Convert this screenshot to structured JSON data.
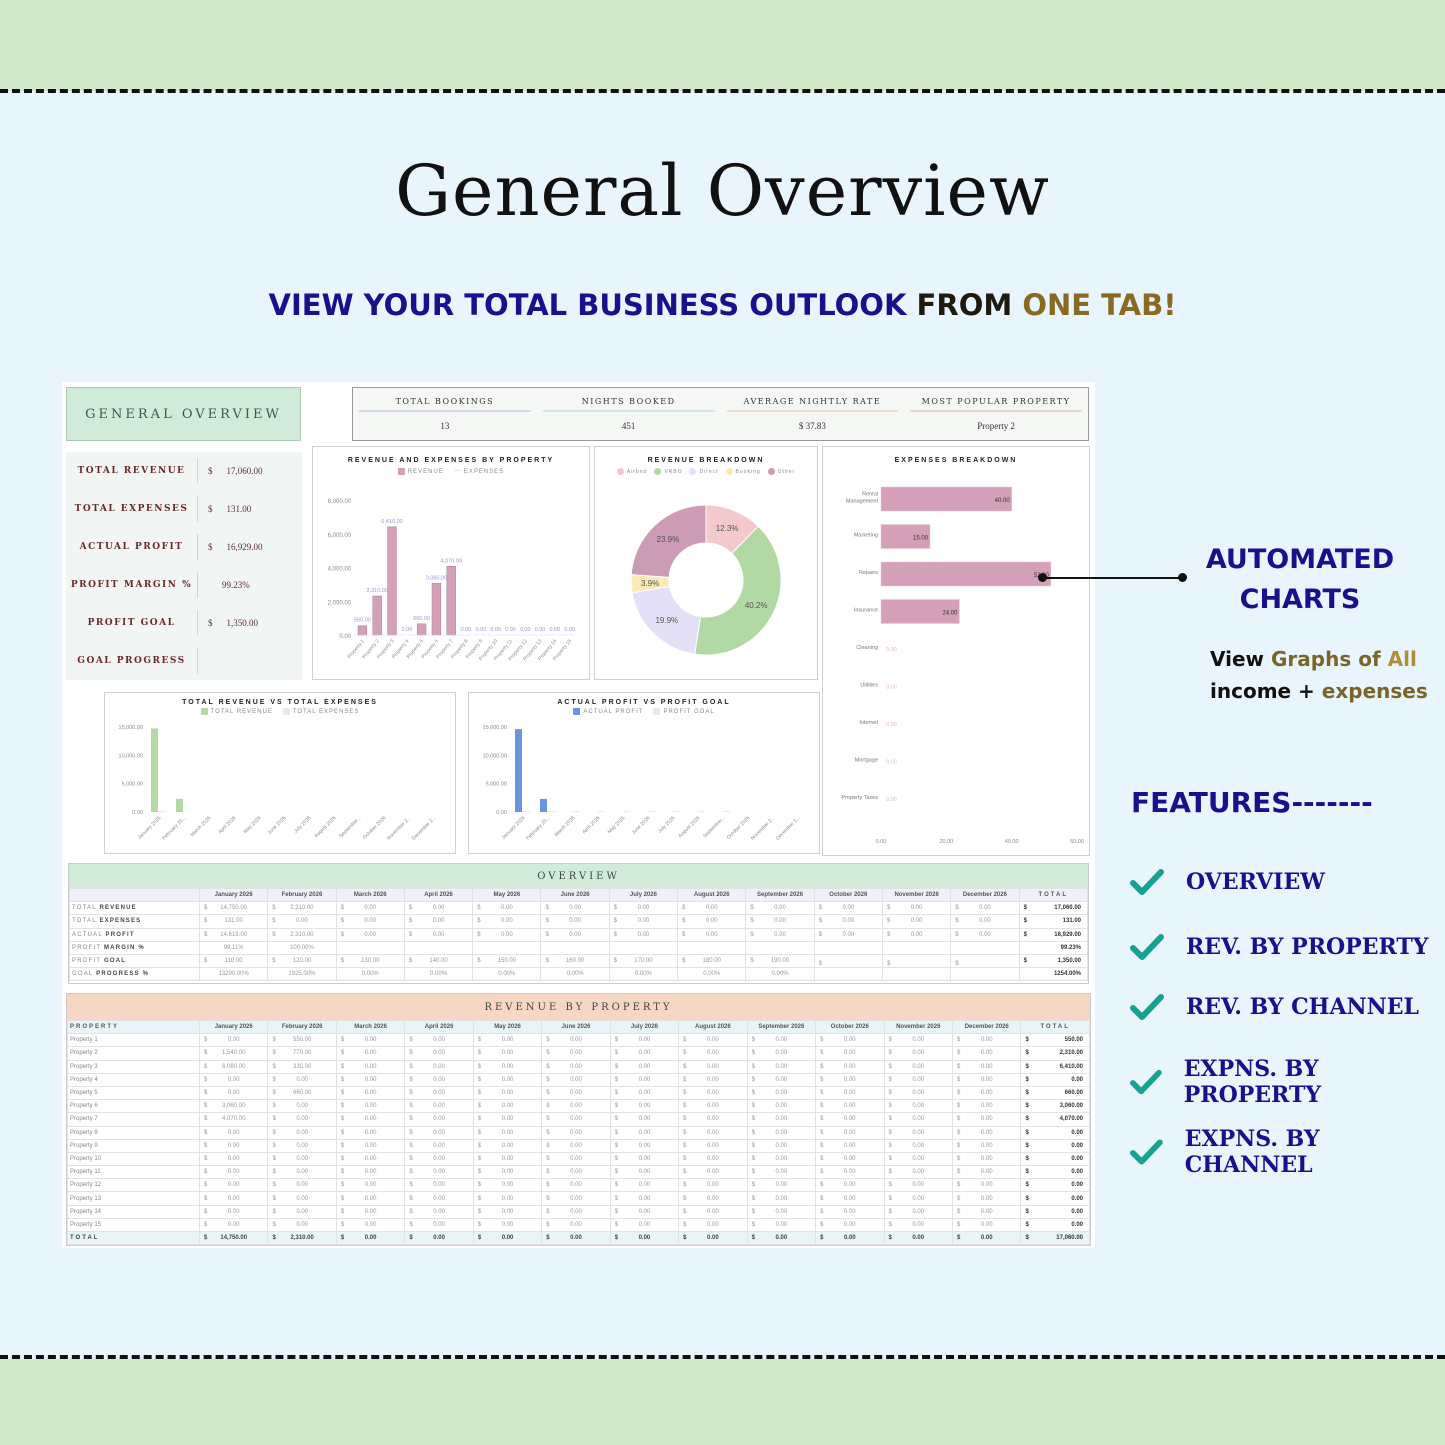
{
  "title": "General Overview",
  "subtitle": {
    "part1": "VIEW YOUR TOTAL BUSINESS OUTLOOK",
    "part2": "FR",
    "part3": "OM",
    "part4": "ONE TAB!"
  },
  "sheet": {
    "header": "GENERAL OVERVIEW",
    "kpis": [
      {
        "label": "TOTAL REVENUE",
        "currency": "$",
        "value": "17,060.00"
      },
      {
        "label": "TOTAL EXPENSES",
        "currency": "$",
        "value": "131.00"
      },
      {
        "label": "ACTUAL PROFIT",
        "currency": "$",
        "value": "16,929.00"
      },
      {
        "label": "PROFIT MARGIN  %",
        "currency": "",
        "value": "99.23%"
      },
      {
        "label": "PROFIT GOAL",
        "currency": "$",
        "value": "1,350.00"
      },
      {
        "label": "GOAL PROGRESS",
        "currency": "",
        "value": ""
      }
    ],
    "top_kpis": [
      {
        "label": "TOTAL BOOKINGS",
        "value": "13",
        "color": "#d9d6f0"
      },
      {
        "label": "NIGHTS BOOKED",
        "value": "451",
        "color": "#cfe8e8"
      },
      {
        "label": "AVERAGE NIGHTLY RATE",
        "value": "$        37.83",
        "color": "#f3d9c8"
      },
      {
        "label": "MOST POPULAR PROPERTY",
        "value": "Property 2",
        "color": "#efd3d3"
      }
    ],
    "overview_table": {
      "title": "OVERVIEW",
      "columns": [
        "",
        "January 2026",
        "February 2026",
        "March 2026",
        "April 2026",
        "May 2026",
        "June 2026",
        "July 2026",
        "August 2026",
        "September 2026",
        "October 2026",
        "November 2026",
        "December 2026",
        "TOTAL"
      ],
      "rows": [
        {
          "label_a": "TOTAL",
          "label_b": "REVENUE",
          "cur": true,
          "values": [
            "14,750.00",
            "2,310.00",
            "0.00",
            "0.00",
            "0.00",
            "0.00",
            "0.00",
            "0.00",
            "0.00",
            "0.00",
            "0.00",
            "0.00"
          ],
          "total": "17,060.00"
        },
        {
          "label_a": "TOTAL",
          "label_b": "EXPENSES",
          "cur": true,
          "values": [
            "131.00",
            "0.00",
            "0.00",
            "0.00",
            "0.00",
            "0.00",
            "0.00",
            "0.00",
            "0.00",
            "0.00",
            "0.00",
            "0.00"
          ],
          "total": "131.00"
        },
        {
          "label_a": "ACTUAL",
          "label_b": "PROFIT",
          "cur": true,
          "values": [
            "14,619.00",
            "2,310.00",
            "0.00",
            "0.00",
            "0.00",
            "0.00",
            "0.00",
            "0.00",
            "0.00",
            "0.00",
            "0.00",
            "0.00"
          ],
          "total": "16,929.00"
        },
        {
          "label_a": "PROFIT",
          "label_b": "MARGIN %",
          "cur": false,
          "values": [
            "99.11%",
            "100.00%",
            "",
            "",
            "",
            "",
            "",
            "",
            "",
            "",
            "",
            ""
          ],
          "total": "99.23%"
        },
        {
          "label_a": "PROFIT",
          "label_b": "GOAL",
          "cur": true,
          "values": [
            "110.00",
            "120.00",
            "130.00",
            "140.00",
            "150.00",
            "160.00",
            "170.00",
            "180.00",
            "190.00",
            "",
            "",
            ""
          ],
          "total": "1,350.00"
        },
        {
          "label_a": "GOAL",
          "label_b": "PROGRESS %",
          "cur": false,
          "values": [
            "13290.00%",
            "1925.00%",
            "0.00%",
            "0.00%",
            "0.00%",
            "0.00%",
            "0.00%",
            "0.00%",
            "0.00%",
            "",
            "",
            ""
          ],
          "total": "1254.00%"
        }
      ]
    },
    "revenue_table": {
      "title": "REVENUE BY PROPERTY",
      "columns": [
        "PROPERTY",
        "January 2026",
        "February 2026",
        "March 2026",
        "April 2026",
        "May 2026",
        "June 2026",
        "July 2026",
        "August 2026",
        "September 2026",
        "October 2026",
        "November 2026",
        "December 2026",
        "TOTAL"
      ],
      "rows": [
        {
          "label": "Property 1",
          "jan": "0.00",
          "feb": "550.00",
          "total": "550.00"
        },
        {
          "label": "Property 2",
          "jan": "1,540.00",
          "feb": "770.00",
          "total": "2,310.00"
        },
        {
          "label": "Property 3",
          "jan": "6,080.00",
          "feb": "330.00",
          "total": "6,410.00"
        },
        {
          "label": "Property 4",
          "jan": "0.00",
          "feb": "0.00",
          "total": "0.00"
        },
        {
          "label": "Property 5",
          "jan": "0.00",
          "feb": "660.00",
          "total": "660.00"
        },
        {
          "label": "Property 6",
          "jan": "3,060.00",
          "feb": "0.00",
          "total": "3,060.00"
        },
        {
          "label": "Property 7",
          "jan": "4,070.00",
          "feb": "0.00",
          "total": "4,070.00"
        },
        {
          "label": "Property 8",
          "jan": "0.00",
          "feb": "0.00",
          "total": "0.00"
        },
        {
          "label": "Property 9",
          "jan": "0.00",
          "feb": "0.00",
          "total": "0.00"
        },
        {
          "label": "Property 10",
          "jan": "0.00",
          "feb": "0.00",
          "total": "0.00"
        },
        {
          "label": "Property 11",
          "jan": "0.00",
          "feb": "0.00",
          "total": "0.00"
        },
        {
          "label": "Property 12",
          "jan": "0.00",
          "feb": "0.00",
          "total": "0.00"
        },
        {
          "label": "Property 13",
          "jan": "0.00",
          "feb": "0.00",
          "total": "0.00"
        },
        {
          "label": "Property 14",
          "jan": "0.00",
          "feb": "0.00",
          "total": "0.00"
        },
        {
          "label": "Property 15",
          "jan": "0.00",
          "feb": "0.00",
          "total": "0.00"
        }
      ],
      "zero": "0.00",
      "total_row": {
        "label": "TOTAL",
        "values": [
          "14,750.00",
          "2,310.00",
          "0.00",
          "0.00",
          "0.00",
          "0.00",
          "0.00",
          "0.00",
          "0.00",
          "0.00",
          "0.00",
          "0.00"
        ],
        "total": "17,060.00"
      }
    }
  },
  "chart_data": [
    {
      "type": "bar",
      "title": "REVENUE AND EXPENSES BY PROPERTY",
      "legend": [
        "REVENUE",
        "EXPENSES"
      ],
      "categories": [
        "Property 1",
        "Property 2",
        "Property 3",
        "Property 4",
        "Property 5",
        "Property 6",
        "Property 7",
        "Property 8",
        "Property 9",
        "Property 10",
        "Property 11",
        "Property 12",
        "Property 13",
        "Property 14",
        "Property 15"
      ],
      "series": [
        {
          "name": "REVENUE",
          "color": "#d4a0b8",
          "values": [
            550,
            2310,
            6410,
            0,
            660,
            3060,
            4070,
            0,
            0,
            0,
            0,
            0,
            0,
            0,
            0
          ]
        },
        {
          "name": "EXPENSES",
          "color": "#e6e6e6",
          "values": [
            0,
            0,
            0,
            0,
            0,
            0,
            0,
            0,
            0,
            0,
            0,
            0,
            0,
            0,
            0
          ]
        }
      ],
      "data_labels": [
        "550.00",
        "2,310.00",
        "6,410.00",
        "0.00",
        "660.00",
        "3,060.00",
        "4,070.00",
        "0.00",
        "0.00",
        "0.00",
        "0.00",
        "0.00",
        "0.00",
        "0.00",
        "0.00"
      ],
      "yticks": [
        "8,000.00",
        "6,000.00",
        "4,000.00",
        "2,000.00",
        "0.00"
      ],
      "ylim": [
        0,
        8000
      ]
    },
    {
      "type": "pie",
      "title": "REVENUE BREAKDOWN",
      "labels": [
        "Airbnb",
        "VRBO",
        "Direct",
        "Booking",
        "Other"
      ],
      "values": [
        12.3,
        40.2,
        19.9,
        3.9,
        23.9
      ],
      "display": [
        "12.3%",
        "40.2%",
        "19.9%",
        "3.9%",
        "23.9%"
      ],
      "colors": [
        "#f3c9cc",
        "#b2d9a4",
        "#e3e0f7",
        "#fbeab8",
        "#cc9bb5"
      ],
      "donut": true
    },
    {
      "type": "bar",
      "orientation": "horizontal",
      "title": "EXPENSES BREAKDOWN",
      "categories": [
        "Rental Management",
        "Marketing",
        "Repairs",
        "Insurance",
        "Cleaning",
        "Utilities",
        "Internet",
        "Mortgage",
        "Property Taxes"
      ],
      "values": [
        40,
        15,
        52,
        24,
        0,
        0,
        0,
        0,
        0
      ],
      "data_labels": [
        "40.00",
        "15.00",
        "52.00",
        "24.00",
        "0.00",
        "0.00",
        "0.00",
        "0.00",
        "0.00"
      ],
      "xticks": [
        "0.00",
        "20.00",
        "40.00",
        "60.00"
      ],
      "xlim": [
        0,
        60
      ],
      "color": "#d4a0b8"
    },
    {
      "type": "bar",
      "title": "TOTAL REVENUE VS TOTAL EXPENSES",
      "legend": [
        "TOTAL REVENUE",
        "TOTAL EXPENSES"
      ],
      "categories": [
        "January 2026",
        "February 20...",
        "March 2026",
        "April 2026",
        "May 2026",
        "June 2026",
        "July 2026",
        "August 2026",
        "September...",
        "October 2026",
        "November 2...",
        "December 2..."
      ],
      "series": [
        {
          "name": "TOTAL REVENUE",
          "color": "#b4d9a6",
          "values": [
            14750,
            2310,
            0,
            0,
            0,
            0,
            0,
            0,
            0,
            0,
            0,
            0
          ]
        },
        {
          "name": "TOTAL EXPENSES",
          "color": "#e2ece6",
          "values": [
            131,
            0,
            0,
            0,
            0,
            0,
            0,
            0,
            0,
            0,
            0,
            0
          ]
        }
      ],
      "yticks": [
        "15,000.00",
        "10,000.00",
        "5,000.00",
        "0.00"
      ],
      "ylim": [
        0,
        15000
      ]
    },
    {
      "type": "bar",
      "title": "ACTUAL PROFIT VS PROFIT GOAL",
      "legend": [
        "ACTUAL PROFIT",
        "PROFIT GOAL"
      ],
      "categories": [
        "January 2026",
        "February 20...",
        "March 2026",
        "April 2026",
        "May 2026",
        "June 2026",
        "July 2026",
        "August 2026",
        "September...",
        "October 2026",
        "November 2...",
        "December 2..."
      ],
      "series": [
        {
          "name": "ACTUAL PROFIT",
          "color": "#6a95de",
          "values": [
            14619,
            2310,
            0,
            0,
            0,
            0,
            0,
            0,
            0,
            0,
            0,
            0
          ]
        },
        {
          "name": "PROFIT GOAL",
          "color": "#e2ece6",
          "values": [
            110,
            120,
            130,
            140,
            150,
            160,
            170,
            180,
            190,
            0,
            0,
            0
          ]
        }
      ],
      "yticks": [
        "15,000.00",
        "10,000.00",
        "5,000.00",
        "0.00"
      ],
      "ylim": [
        0,
        15000
      ]
    }
  ],
  "callout": {
    "heading_line1": "AUTOMATED",
    "heading_line2": "CHARTS",
    "sub_view": "View",
    "sub_graphs": "Graphs of",
    "sub_all": "All",
    "sub_income": "income +",
    "sub_expenses": "expenses"
  },
  "features": {
    "heading": "FEATURES-------",
    "items": [
      "OVERVIEW",
      "REV. BY PROPERTY",
      "REV. BY CHANNEL",
      "EXPNS. BY PROPERTY",
      "EXPNS. BY CHANNEL"
    ]
  }
}
